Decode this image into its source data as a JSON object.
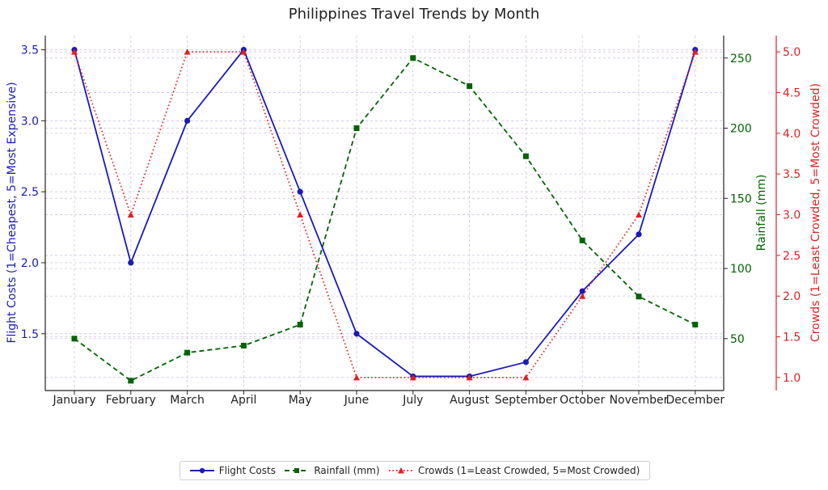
{
  "chart_data": {
    "type": "line",
    "title": "Philippines Travel Trends by Month",
    "categories": [
      "January",
      "February",
      "March",
      "April",
      "May",
      "June",
      "July",
      "August",
      "September",
      "October",
      "November",
      "December"
    ],
    "grid": true,
    "legend_position": "bottom-center",
    "axes": {
      "left": {
        "label": "Flight Costs (1=Cheapest, 5=Most Expensive)",
        "ylim": [
          1.1,
          3.6
        ],
        "ticks": [
          "1.5",
          "2.0",
          "2.5",
          "3.0",
          "3.5"
        ],
        "color": "#1a1ab8"
      },
      "right1": {
        "label": "Rainfall (mm)",
        "ylim": [
          13,
          266
        ],
        "ticks": [
          "50",
          "100",
          "150",
          "200",
          "250"
        ],
        "color": "#006400"
      },
      "right2": {
        "label": "Crowds (1=Least Crowded, 5=Most Crowded)",
        "ylim": [
          0.84,
          5.2
        ],
        "ticks": [
          "1.0",
          "1.5",
          "2.0",
          "2.5",
          "3.0",
          "3.5",
          "4.0",
          "4.5",
          "5.0"
        ],
        "color": "#e02020"
      }
    },
    "series": [
      {
        "name": "Flight Costs",
        "axis": "left",
        "color": "#1a1ab8",
        "style": "solid",
        "marker": "circle",
        "values": [
          3.5,
          2.0,
          3.0,
          3.5,
          2.5,
          1.5,
          1.2,
          1.2,
          1.3,
          1.8,
          2.2,
          3.5
        ]
      },
      {
        "name": "Rainfall (mm)",
        "axis": "right1",
        "color": "#006400",
        "style": "dashed",
        "marker": "square",
        "values": [
          50,
          20,
          40,
          45,
          60,
          200,
          250,
          230,
          180,
          120,
          80,
          60
        ]
      },
      {
        "name": "Crowds (1=Least Crowded, 5=Most Crowded)",
        "axis": "right2",
        "color": "#e02020",
        "style": "dotted",
        "marker": "triangle",
        "values": [
          5.0,
          3.0,
          5.0,
          5.0,
          3.0,
          1.0,
          1.0,
          1.0,
          1.0,
          2.0,
          3.0,
          5.0
        ]
      }
    ]
  }
}
